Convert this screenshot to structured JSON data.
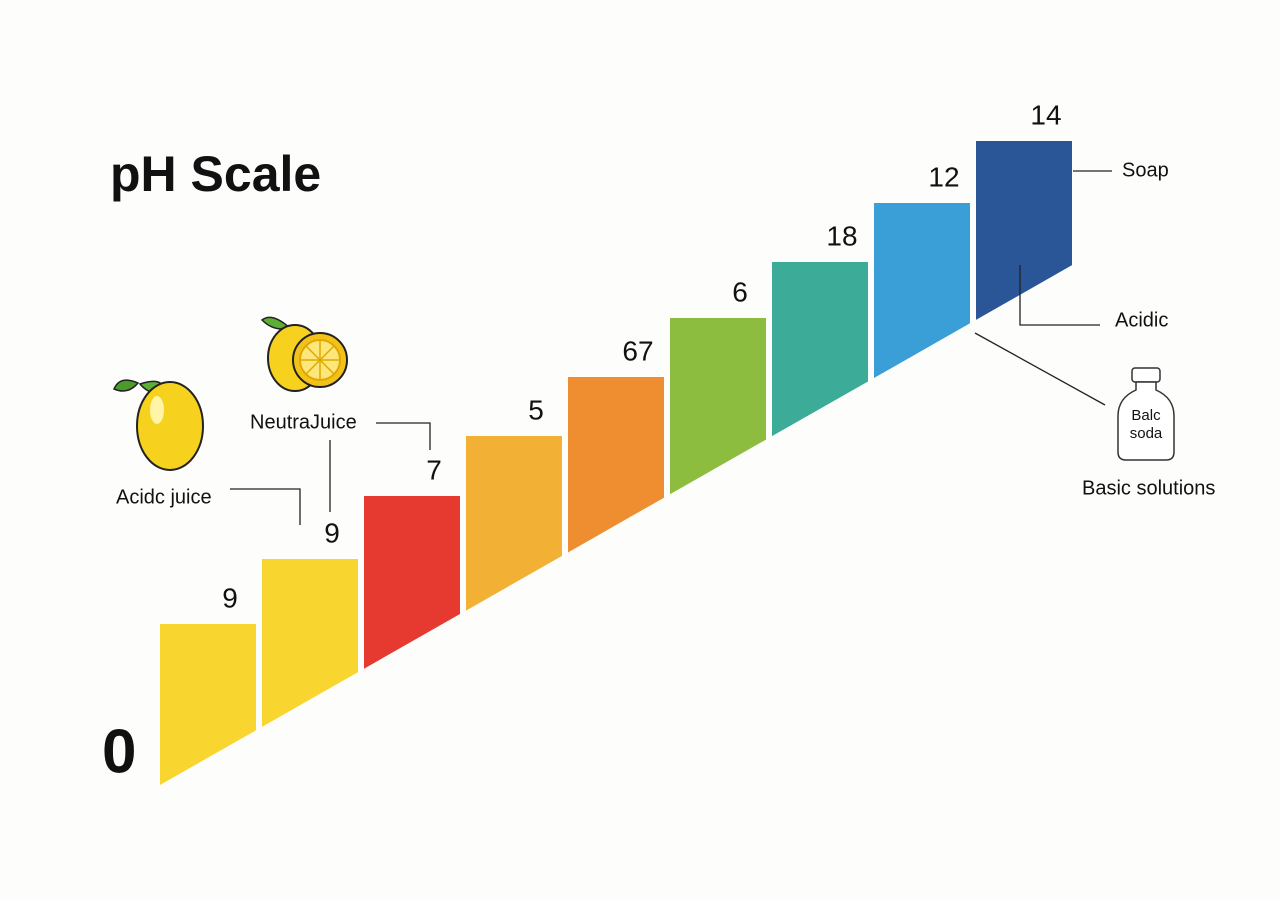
{
  "title": "pH Scale",
  "origin_label": "0",
  "steps": [
    {
      "label": "9",
      "color": "#f8d52f"
    },
    {
      "label": "9",
      "color": "#f8d52f"
    },
    {
      "label": "7",
      "color": "#e63a30"
    },
    {
      "label": "5",
      "color": "#f2b035"
    },
    {
      "label": "67",
      "color": "#ef8e30"
    },
    {
      "label": "6",
      "color": "#8cbd3f"
    },
    {
      "label": "18",
      "color": "#3cab97"
    },
    {
      "label": "12",
      "color": "#3a9fd6"
    },
    {
      "label": "14",
      "color": "#2a5597"
    }
  ],
  "annotations": {
    "acidic_juice": "Acidc juice",
    "neutral_juice": "NeutraJuice",
    "soap": "Soap",
    "acidic": "Acidic",
    "basic_solutions": "Basic solutions"
  },
  "bottle_label": [
    "Balc",
    "soda"
  ]
}
